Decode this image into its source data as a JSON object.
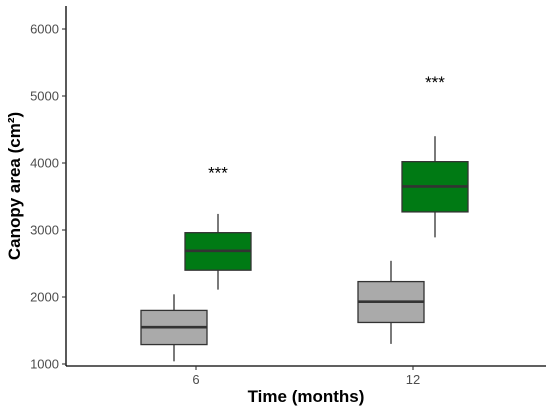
{
  "chart_data": {
    "type": "boxplot",
    "xlabel": "Time (months)",
    "ylabel": "Canopy area (cm²)",
    "categories": [
      "6",
      "12"
    ],
    "ylim": [
      950,
      6400
    ],
    "yticks": [
      1000,
      2000,
      3000,
      4000,
      5000,
      6000
    ],
    "grid": false,
    "legend": "none",
    "series": [
      {
        "color": "#aaaaaa",
        "boxes": [
          {
            "category": "6",
            "whisker_low": 1040,
            "q1": 1290,
            "median": 1550,
            "q3": 1800,
            "whisker_high": 2040
          },
          {
            "category": "12",
            "whisker_low": 1300,
            "q1": 1620,
            "median": 1930,
            "q3": 2230,
            "whisker_high": 2540
          }
        ]
      },
      {
        "color": "#007a14",
        "boxes": [
          {
            "category": "6",
            "whisker_low": 2110,
            "q1": 2400,
            "median": 2690,
            "q3": 2960,
            "whisker_high": 3240
          },
          {
            "category": "12",
            "whisker_low": 2890,
            "q1": 3270,
            "median": 3650,
            "q3": 4020,
            "whisker_high": 4400
          }
        ]
      }
    ],
    "annotations": [
      {
        "category": "6",
        "series_index": 1,
        "text": "***",
        "y": 3950
      },
      {
        "category": "12",
        "series_index": 1,
        "text": "***",
        "y": 5300
      }
    ]
  }
}
